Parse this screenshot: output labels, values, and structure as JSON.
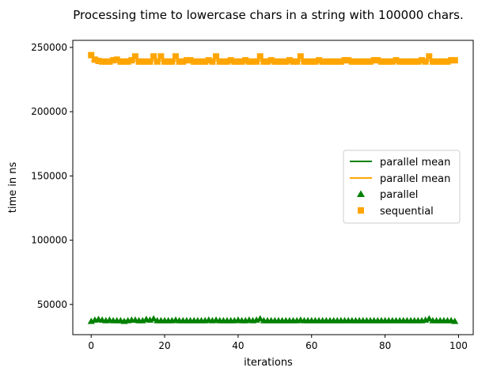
{
  "chart_data": {
    "type": "scatter",
    "title": "Processing time to lowercase chars in a string with 100000 chars.",
    "xlabel": "iterations",
    "ylabel": "time in ns",
    "xlim": [
      -5,
      104
    ],
    "ylim": [
      26500,
      255500
    ],
    "xticks": [
      0,
      20,
      40,
      60,
      80,
      100
    ],
    "yticks": [
      50000,
      100000,
      150000,
      200000,
      250000
    ],
    "grid": false,
    "legend_position": "center-right",
    "series": [
      {
        "name": "parallel mean",
        "kind": "line",
        "color": "#008000",
        "y": 37500
      },
      {
        "name": "parallel mean",
        "kind": "line",
        "color": "#ffa500",
        "y": 239500
      },
      {
        "name": "parallel",
        "kind": "scatter",
        "marker": "triangle",
        "color": "#008000",
        "x": [
          0,
          1,
          2,
          3,
          4,
          5,
          6,
          7,
          8,
          9,
          10,
          11,
          12,
          13,
          14,
          15,
          16,
          17,
          18,
          19,
          20,
          21,
          22,
          23,
          24,
          25,
          26,
          27,
          28,
          29,
          30,
          31,
          32,
          33,
          34,
          35,
          36,
          37,
          38,
          39,
          40,
          41,
          42,
          43,
          44,
          45,
          46,
          47,
          48,
          49,
          50,
          51,
          52,
          53,
          54,
          55,
          56,
          57,
          58,
          59,
          60,
          61,
          62,
          63,
          64,
          65,
          66,
          67,
          68,
          69,
          70,
          71,
          72,
          73,
          74,
          75,
          76,
          77,
          78,
          79,
          80,
          81,
          82,
          83,
          84,
          85,
          86,
          87,
          88,
          89,
          90,
          91,
          92,
          93,
          94,
          95,
          96,
          97,
          98,
          99
        ],
        "y": [
          37000,
          38000,
          38500,
          38000,
          37500,
          38000,
          37500,
          37500,
          37500,
          37000,
          37500,
          38000,
          38000,
          37500,
          37500,
          38500,
          38000,
          39000,
          37500,
          37500,
          37500,
          37500,
          37500,
          38000,
          37500,
          37500,
          37500,
          37500,
          37500,
          37500,
          37500,
          37500,
          38000,
          37500,
          38000,
          37500,
          37500,
          37500,
          37500,
          37500,
          38000,
          37500,
          37500,
          38000,
          37500,
          38000,
          39000,
          37500,
          37500,
          37500,
          37500,
          37500,
          37500,
          37500,
          37500,
          37500,
          37500,
          38000,
          37500,
          37500,
          37500,
          37500,
          37500,
          37500,
          37500,
          37500,
          37500,
          37500,
          37500,
          37500,
          37500,
          37500,
          37500,
          37500,
          37500,
          37500,
          37500,
          37500,
          37500,
          37500,
          37500,
          37500,
          37500,
          37500,
          37500,
          37500,
          37500,
          37500,
          37500,
          37500,
          37500,
          38000,
          39000,
          37500,
          37500,
          37500,
          37500,
          37500,
          37500,
          37000
        ]
      },
      {
        "name": "sequential",
        "kind": "scatter",
        "marker": "square",
        "color": "#ffa500",
        "x": [
          0,
          1,
          2,
          3,
          4,
          5,
          6,
          7,
          8,
          9,
          10,
          11,
          12,
          13,
          14,
          15,
          16,
          17,
          18,
          19,
          20,
          21,
          22,
          23,
          24,
          25,
          26,
          27,
          28,
          29,
          30,
          31,
          32,
          33,
          34,
          35,
          36,
          37,
          38,
          39,
          40,
          41,
          42,
          43,
          44,
          45,
          46,
          47,
          48,
          49,
          50,
          51,
          52,
          53,
          54,
          55,
          56,
          57,
          58,
          59,
          60,
          61,
          62,
          63,
          64,
          65,
          66,
          67,
          68,
          69,
          70,
          71,
          72,
          73,
          74,
          75,
          76,
          77,
          78,
          79,
          80,
          81,
          82,
          83,
          84,
          85,
          86,
          87,
          88,
          89,
          90,
          91,
          92,
          93,
          94,
          95,
          96,
          97,
          98,
          99
        ],
        "y": [
          244000,
          240500,
          239500,
          239000,
          239000,
          239000,
          240000,
          240500,
          239000,
          239000,
          239000,
          240000,
          243000,
          239000,
          239000,
          239000,
          239000,
          243000,
          239000,
          243000,
          239000,
          239000,
          239000,
          243000,
          239000,
          239000,
          240000,
          240000,
          239000,
          239000,
          239000,
          239000,
          240000,
          239000,
          243000,
          239000,
          239000,
          239000,
          240000,
          239000,
          239000,
          239000,
          240000,
          239000,
          239000,
          239000,
          243000,
          239000,
          239000,
          240000,
          239000,
          239000,
          239000,
          239000,
          240000,
          239000,
          239000,
          243000,
          239000,
          239000,
          239000,
          239000,
          240000,
          239000,
          239000,
          239000,
          239000,
          239000,
          239000,
          240000,
          240000,
          239000,
          239000,
          239000,
          239000,
          239000,
          239000,
          240000,
          240000,
          239000,
          239000,
          239000,
          239000,
          240000,
          239000,
          239000,
          239000,
          239000,
          239000,
          239000,
          240000,
          239000,
          243000,
          239000,
          239000,
          239000,
          239000,
          239000,
          240000,
          240000
        ]
      }
    ]
  }
}
